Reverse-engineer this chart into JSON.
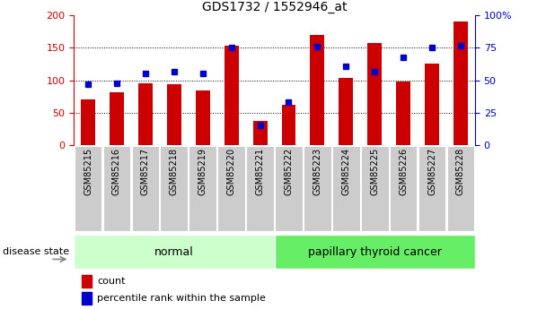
{
  "title": "GDS1732 / 1552946_at",
  "samples": [
    "GSM85215",
    "GSM85216",
    "GSM85217",
    "GSM85218",
    "GSM85219",
    "GSM85220",
    "GSM85221",
    "GSM85222",
    "GSM85223",
    "GSM85224",
    "GSM85225",
    "GSM85226",
    "GSM85227",
    "GSM85228"
  ],
  "count": [
    70,
    81,
    95,
    94,
    85,
    153,
    38,
    62,
    170,
    104,
    157,
    98,
    126,
    191
  ],
  "percentile": [
    47,
    48,
    55,
    57,
    55,
    75,
    15,
    33,
    76,
    61,
    57,
    68,
    75,
    77
  ],
  "normal_indices": [
    0,
    1,
    2,
    3,
    4,
    5,
    6
  ],
  "cancer_indices": [
    7,
    8,
    9,
    10,
    11,
    12,
    13
  ],
  "ylim_left": [
    0,
    200
  ],
  "ylim_right": [
    0,
    100
  ],
  "yticks_left": [
    0,
    50,
    100,
    150,
    200
  ],
  "yticks_right": [
    0,
    25,
    50,
    75,
    100
  ],
  "bar_color_red": "#cc0000",
  "bar_color_blue": "#0000cc",
  "normal_bg": "#ccffcc",
  "cancer_bg": "#66ee66",
  "tick_bg": "#cccccc",
  "legend_red": "count",
  "legend_blue": "percentile rank within the sample",
  "group_normal_label": "normal",
  "group_cancer_label": "papillary thyroid cancer",
  "disease_state_label": "disease state",
  "bar_width": 0.5
}
